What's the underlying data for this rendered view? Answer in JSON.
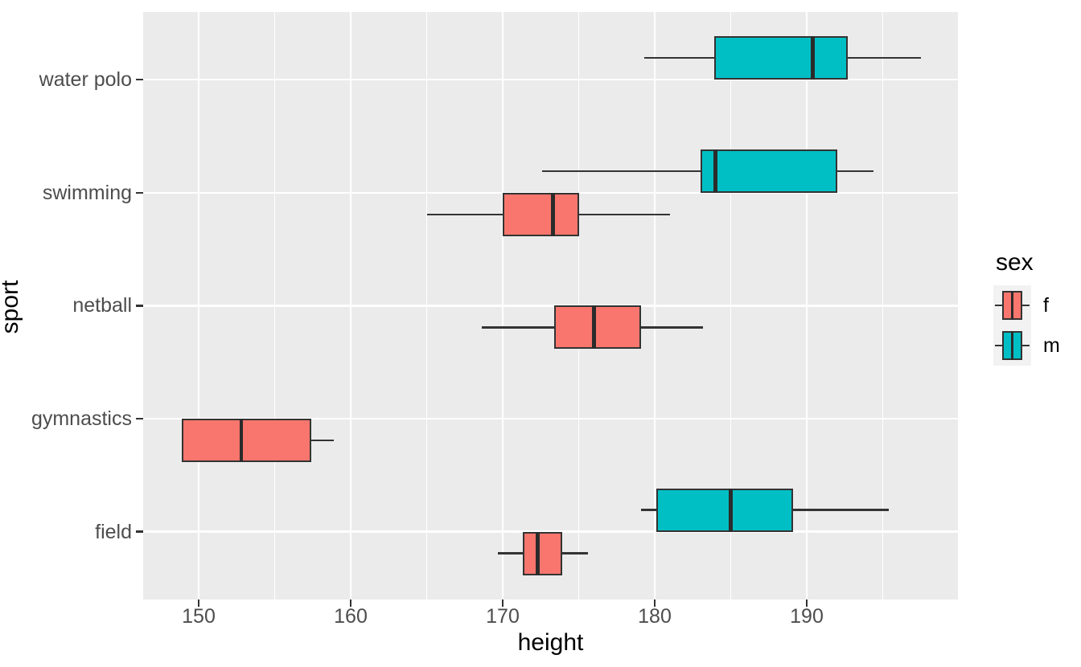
{
  "chart_data": {
    "type": "boxplot",
    "orientation": "horizontal",
    "title": "",
    "xlabel": "height",
    "ylabel": "sport",
    "x_range": [
      146.3,
      199.9
    ],
    "x_ticks": [
      150,
      160,
      170,
      180,
      190
    ],
    "x_minor_ticks": [
      155,
      165,
      175,
      185,
      195
    ],
    "categories": [
      "water polo",
      "swimming",
      "netball",
      "gymnastics",
      "field"
    ],
    "grid": true,
    "legend": {
      "title": "sex",
      "position": "right",
      "entries": [
        {
          "label": "f",
          "color": "#F8766D"
        },
        {
          "label": "m",
          "color": "#00BFC4"
        }
      ]
    },
    "boxes": [
      {
        "sport": "water polo",
        "sex": "m",
        "min": 179.3,
        "q1": 183.9,
        "median": 190.4,
        "q3": 192.7,
        "max": 197.5
      },
      {
        "sport": "swimming",
        "sex": "m",
        "min": 172.6,
        "q1": 183.0,
        "median": 184.0,
        "q3": 192.0,
        "max": 194.4
      },
      {
        "sport": "swimming",
        "sex": "f",
        "min": 165.0,
        "q1": 170.0,
        "median": 173.3,
        "q3": 175.0,
        "max": 181.0
      },
      {
        "sport": "netball",
        "sex": "f",
        "min": 168.6,
        "q1": 173.4,
        "median": 176.0,
        "q3": 179.1,
        "max": 183.2
      },
      {
        "sport": "gymnastics",
        "sex": "f",
        "min": 148.9,
        "q1": 148.9,
        "median": 152.8,
        "q3": 157.4,
        "max": 158.9
      },
      {
        "sport": "field",
        "sex": "m",
        "min": 179.1,
        "q1": 180.1,
        "median": 185.0,
        "q3": 189.1,
        "max": 195.4
      },
      {
        "sport": "field",
        "sex": "f",
        "min": 169.7,
        "q1": 171.3,
        "median": 172.3,
        "q3": 173.9,
        "max": 175.6
      }
    ],
    "colors": {
      "f": "#F8766D",
      "m": "#00BFC4",
      "box_border": "#333333",
      "grid": "#FFFFFF",
      "panel_bg": "#EBEBEB",
      "tick_text": "#4D4D4D",
      "title_text": "#000000",
      "legend_key_bg": "#F2F2F2"
    }
  }
}
